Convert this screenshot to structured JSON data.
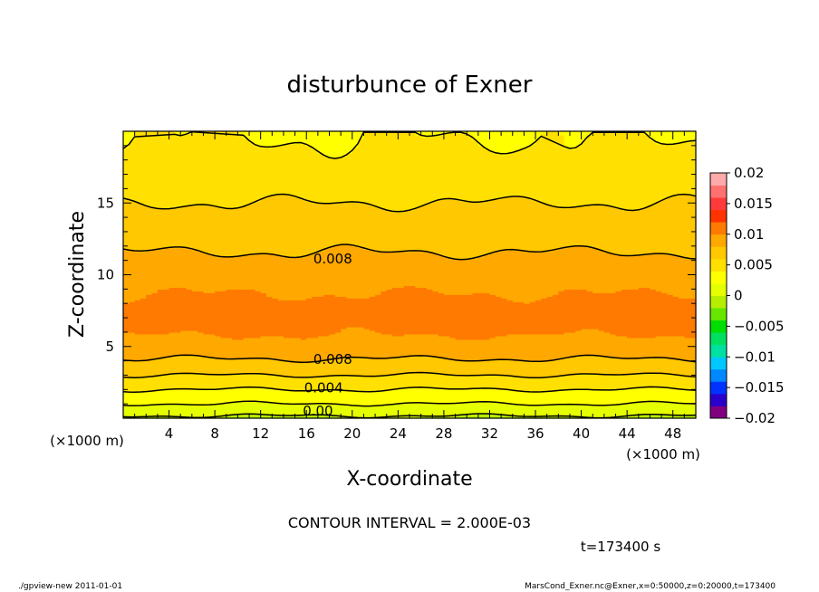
{
  "chart_data": {
    "type": "heatmap",
    "title": "disturbunce of Exner",
    "xlabel": "X-coordinate",
    "ylabel": "Z-coordinate",
    "x_unit": "(×1000 m)",
    "xlim": [
      0,
      50
    ],
    "ylim": [
      0,
      20
    ],
    "xticks": [
      4,
      8,
      12,
      16,
      20,
      24,
      28,
      32,
      36,
      40,
      44,
      48
    ],
    "yticks": [
      5,
      10,
      15
    ],
    "contour_interval_text": "CONTOUR INTERVAL = 2.000E-03",
    "time_text": "t=173400 s",
    "contour_labels": [
      {
        "text": "0.008",
        "x": 18.3,
        "z": 11.1
      },
      {
        "text": "0.008",
        "x": 18.3,
        "z": 4.1
      },
      {
        "text": "0.004",
        "x": 17.5,
        "z": 2.1
      },
      {
        "text": "0.00",
        "x": 17.0,
        "z": 0.5
      }
    ],
    "field_profile_z": [
      0,
      0.5,
      1,
      1.5,
      2,
      2.5,
      3,
      3.5,
      4,
      5,
      6,
      7,
      8,
      9,
      10,
      11,
      12,
      13,
      14,
      15,
      16,
      17,
      18,
      19,
      20
    ],
    "field_profile_value": [
      -0.0004,
      0.0008,
      0.002,
      0.003,
      0.004,
      0.005,
      0.006,
      0.007,
      0.0078,
      0.0092,
      0.0102,
      0.0106,
      0.0104,
      0.0098,
      0.009,
      0.0084,
      0.0077,
      0.0071,
      0.0066,
      0.006,
      0.0054,
      0.0048,
      0.0044,
      0.0041,
      0.0039
    ],
    "colorbar": {
      "tick_labels": [
        "0.02",
        "0.015",
        "0.01",
        "0.005",
        "0",
        "−0.005",
        "−0.01",
        "−0.015",
        "−0.02"
      ],
      "min": -0.02,
      "max": 0.02,
      "colors": [
        "#800080",
        "#2a00cc",
        "#0033ff",
        "#0088ff",
        "#00c8ff",
        "#00e0a0",
        "#00e060",
        "#00dd00",
        "#66e600",
        "#b5ee00",
        "#e6ff00",
        "#ffff00",
        "#ffe000",
        "#ffc800",
        "#ffa800",
        "#ff7a00",
        "#ff3300",
        "#ff3a3a",
        "#ff7070",
        "#ffaaaa"
      ]
    }
  },
  "footer": {
    "left": "./gpview-new   2011-01-01",
    "right": "MarsCond_Exner.nc@Exner,x=0:50000,z=0:20000,t=173400"
  }
}
